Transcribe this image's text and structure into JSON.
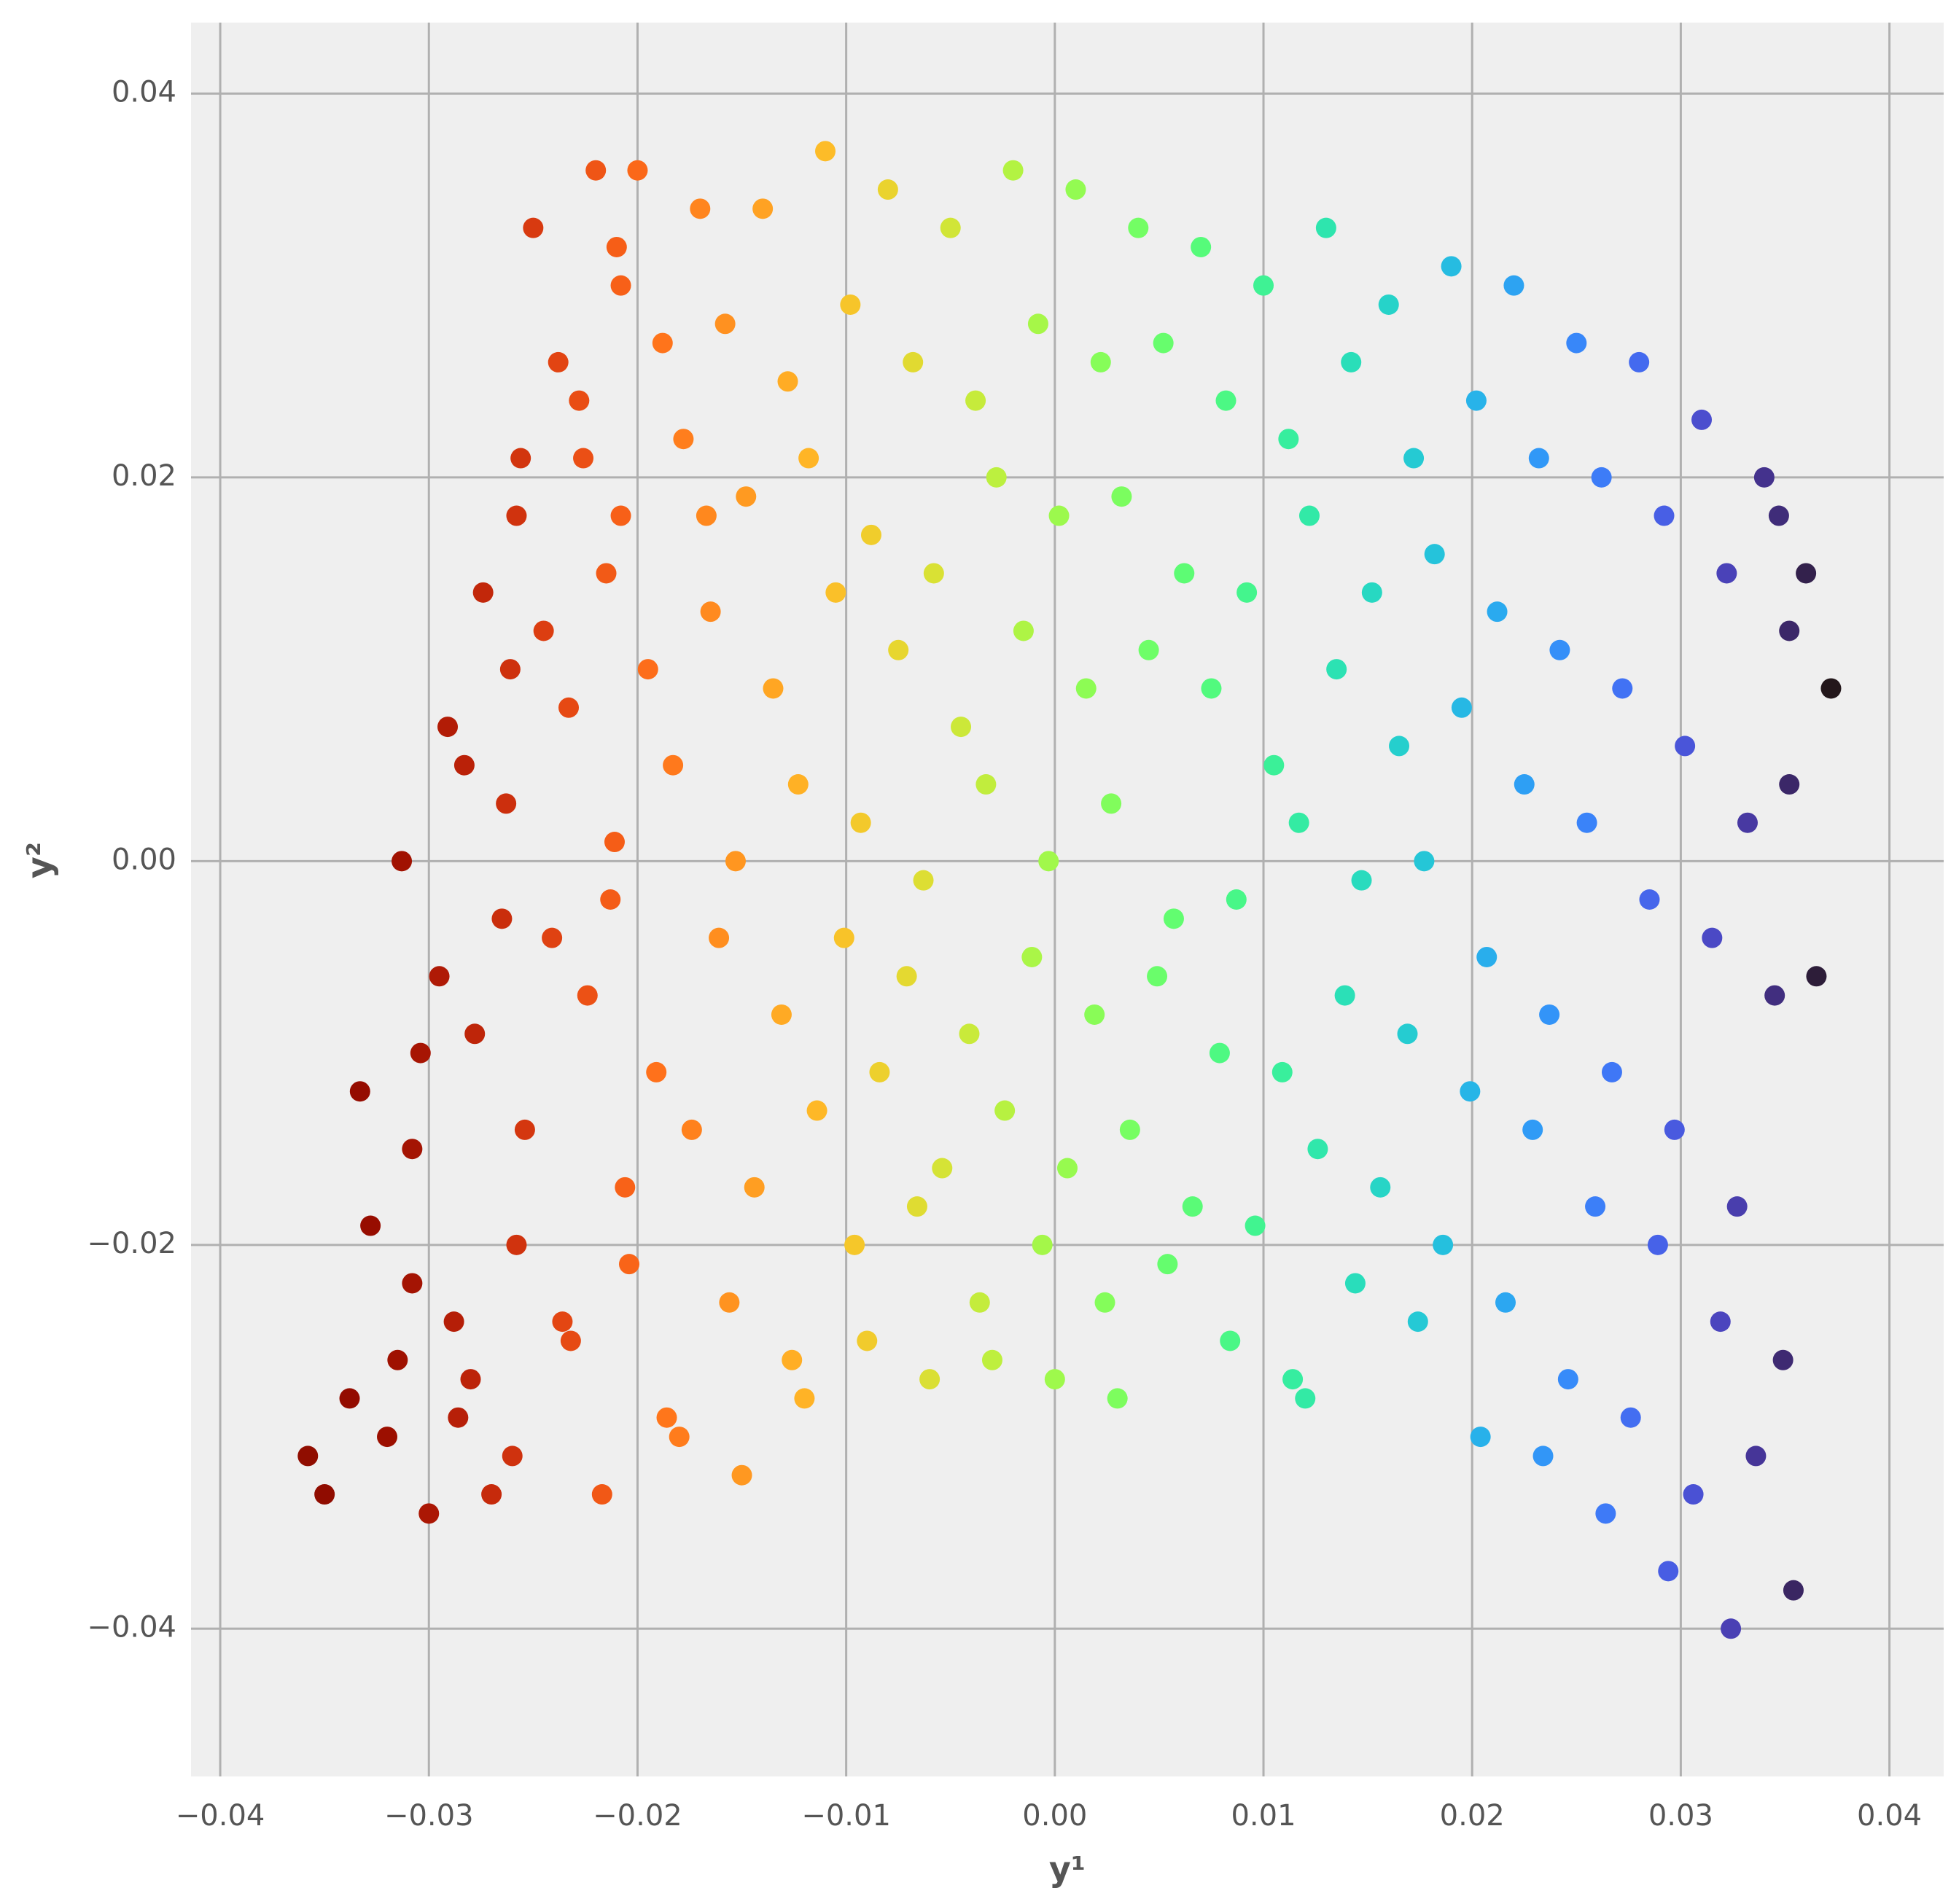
{
  "chart_data": {
    "type": "scatter",
    "xlabel": "y¹",
    "ylabel": "y²",
    "xlim": [
      -0.0414,
      0.0426
    ],
    "ylim": [
      -0.0477,
      0.0437
    ],
    "xticks": [
      {
        "value": -0.04,
        "label": "−0.04"
      },
      {
        "value": -0.03,
        "label": "−0.03"
      },
      {
        "value": -0.02,
        "label": "−0.02"
      },
      {
        "value": -0.01,
        "label": "−0.01"
      },
      {
        "value": 0,
        "label": "0.00"
      },
      0.01,
      0.02,
      0.03,
      0.04
    ],
    "yticks": [
      {
        "value": -0.04,
        "label": "−0.04"
      },
      {
        "value": -0.02,
        "label": "−0.02"
      },
      {
        "value": 0,
        "label": "0.00"
      },
      0.02,
      0.04
    ],
    "grid": true,
    "colormap": "turbo_r",
    "x": [
      -0.035,
      -0.0338,
      -0.0358,
      -0.032,
      -0.0308,
      -0.0328,
      -0.0315,
      -0.0333,
      -0.03,
      -0.0288,
      -0.0308,
      -0.0295,
      -0.0313,
      -0.0291,
      -0.0304,
      -0.0286,
      -0.027,
      -0.0258,
      -0.0278,
      -0.0265,
      -0.0283,
      -0.0261,
      -0.0274,
      -0.0256,
      -0.028,
      -0.025,
      -0.0238,
      -0.0258,
      -0.0245,
      -0.0263,
      -0.0241,
      -0.0254,
      -0.0236,
      -0.026,
      -0.022,
      -0.0208,
      -0.0228,
      -0.0215,
      -0.0233,
      -0.0211,
      -0.0224,
      -0.0206,
      -0.0232,
      -0.0217,
      -0.0226,
      -0.02,
      -0.0188,
      -0.0208,
      -0.0195,
      -0.0213,
      -0.0191,
      -0.0204,
      -0.0186,
      -0.021,
      -0.017,
      -0.0158,
      -0.0178,
      -0.0165,
      -0.0183,
      -0.0161,
      -0.0174,
      -0.0156,
      -0.018,
      -0.0167,
      -0.014,
      -0.0128,
      -0.0148,
      -0.0135,
      -0.0153,
      -0.0131,
      -0.0144,
      -0.0126,
      -0.015,
      -0.011,
      -0.0098,
      -0.0118,
      -0.0105,
      -0.0123,
      -0.0101,
      -0.0114,
      -0.0096,
      -0.012,
      -0.008,
      -0.0068,
      -0.0088,
      -0.0075,
      -0.0093,
      -0.0071,
      -0.0084,
      -0.0066,
      -0.009,
      -0.005,
      -0.0038,
      -0.0058,
      -0.0045,
      -0.0063,
      -0.0041,
      -0.0054,
      -0.0036,
      -0.006,
      -0.002,
      -0.0008,
      -0.0028,
      -0.0015,
      -0.0033,
      -0.0011,
      -0.0024,
      -0.0006,
      -0.003,
      0.001,
      0.0022,
      0.0002,
      0.0015,
      -0.0003,
      0.0019,
      0.0006,
      0.0024,
      0.0,
      0.004,
      0.0052,
      0.0032,
      0.0045,
      0.0027,
      0.0049,
      0.0036,
      0.0054,
      0.003,
      0.007,
      0.0082,
      0.0062,
      0.0075,
      0.0057,
      0.0079,
      0.0066,
      0.0084,
      0.01,
      0.0112,
      0.0092,
      0.0105,
      0.0087,
      0.0109,
      0.0096,
      0.0114,
      0.013,
      0.0142,
      0.0122,
      0.0135,
      0.0117,
      0.0139,
      0.0126,
      0.0144,
      0.012,
      0.016,
      0.0172,
      0.0152,
      0.0165,
      0.0147,
      0.0169,
      0.0156,
      0.0174,
      0.019,
      0.0202,
      0.0182,
      0.0195,
      0.0177,
      0.0199,
      0.0186,
      0.0204,
      0.022,
      0.0232,
      0.0212,
      0.0225,
      0.0207,
      0.0229,
      0.0216,
      0.0234,
      0.025,
      0.0262,
      0.0242,
      0.0255,
      0.0237,
      0.0259,
      0.0246,
      0.0264,
      0.028,
      0.0292,
      0.0272,
      0.0285,
      0.0267,
      0.0289,
      0.0276,
      0.0294,
      0.031,
      0.0322,
      0.0302,
      0.0315,
      0.0297,
      0.0319,
      0.0306,
      0.0324,
      0.034,
      0.0352,
      0.0332,
      0.0345,
      0.0327,
      0.0349,
      0.0336,
      0.0354,
      0.036,
      0.0372,
      0.0352,
      0.0365,
      0.0347
    ],
    "values": [
      -0.033,
      -0.028,
      -0.031,
      -0.03,
      -0.022,
      -0.019,
      -0.026,
      -0.012,
      -0.034,
      -0.024,
      -0.015,
      -0.006,
      0.0,
      0.007,
      -0.01,
      -0.029,
      -0.033,
      -0.02,
      -0.009,
      -0.003,
      0.005,
      0.01,
      0.014,
      0.021,
      -0.027,
      0.033,
      0.026,
      0.018,
      0.012,
      0.003,
      -0.004,
      -0.014,
      -0.024,
      -0.031,
      0.036,
      0.03,
      0.024,
      0.015,
      0.008,
      0.001,
      -0.007,
      -0.017,
      -0.025,
      -0.033,
      0.021,
      0.036,
      0.027,
      0.018,
      0.01,
      -0.002,
      -0.011,
      -0.021,
      -0.029,
      0.032,
      0.034,
      0.028,
      0.022,
      0.013,
      0.005,
      -0.004,
      -0.014,
      -0.023,
      -0.03,
      0.018,
      0.034,
      0.025,
      0.019,
      0.009,
      0.0,
      -0.008,
      -0.017,
      -0.026,
      -0.032,
      0.037,
      0.029,
      0.021,
      0.014,
      0.004,
      -0.004,
      -0.013,
      -0.02,
      -0.028,
      0.035,
      0.026,
      0.017,
      0.011,
      0.002,
      -0.006,
      -0.011,
      -0.018,
      -0.025,
      0.033,
      0.024,
      0.015,
      0.007,
      -0.001,
      -0.009,
      -0.016,
      -0.023,
      -0.027,
      0.036,
      0.028,
      0.02,
      0.012,
      0.004,
      -0.005,
      -0.013,
      -0.02,
      -0.026,
      0.035,
      0.026,
      0.018,
      0.009,
      0.0,
      -0.008,
      -0.016,
      -0.023,
      -0.027,
      0.033,
      0.027,
      0.019,
      0.011,
      0.003,
      -0.006,
      -0.014,
      -0.021,
      -0.028,
      0.032,
      0.024,
      0.015,
      0.009,
      -0.003,
      -0.01,
      -0.018,
      -0.025,
      0.03,
      0.022,
      0.014,
      0.005,
      -0.002,
      -0.011,
      -0.019,
      -0.027,
      0.033,
      0.026,
      0.018,
      0.01,
      0.002,
      -0.007,
      -0.015,
      -0.022,
      -0.028,
      0.029,
      0.021,
      0.014,
      0.006,
      -0.001,
      -0.009,
      -0.017,
      -0.024,
      0.031,
      0.024,
      0.016,
      0.008,
      0.0,
      -0.012,
      -0.02,
      -0.03,
      0.03,
      0.021,
      0.013,
      0.004,
      -0.005,
      -0.014,
      -0.023,
      -0.031,
      0.027,
      0.02,
      0.011,
      0.002,
      -0.008,
      -0.018,
      -0.027,
      -0.034,
      0.026,
      0.018,
      0.009,
      -0.002,
      -0.011,
      -0.02,
      -0.029,
      -0.037,
      0.023,
      0.015,
      0.006,
      -0.004,
      -0.014,
      -0.024,
      -0.033,
      -0.04,
      0.02,
      0.012,
      0.002,
      -0.007,
      -0.018,
      -0.026,
      -0.031,
      -0.038,
      0.015,
      0.009,
      0.004,
      -0.006,
      0.018
    ]
  }
}
